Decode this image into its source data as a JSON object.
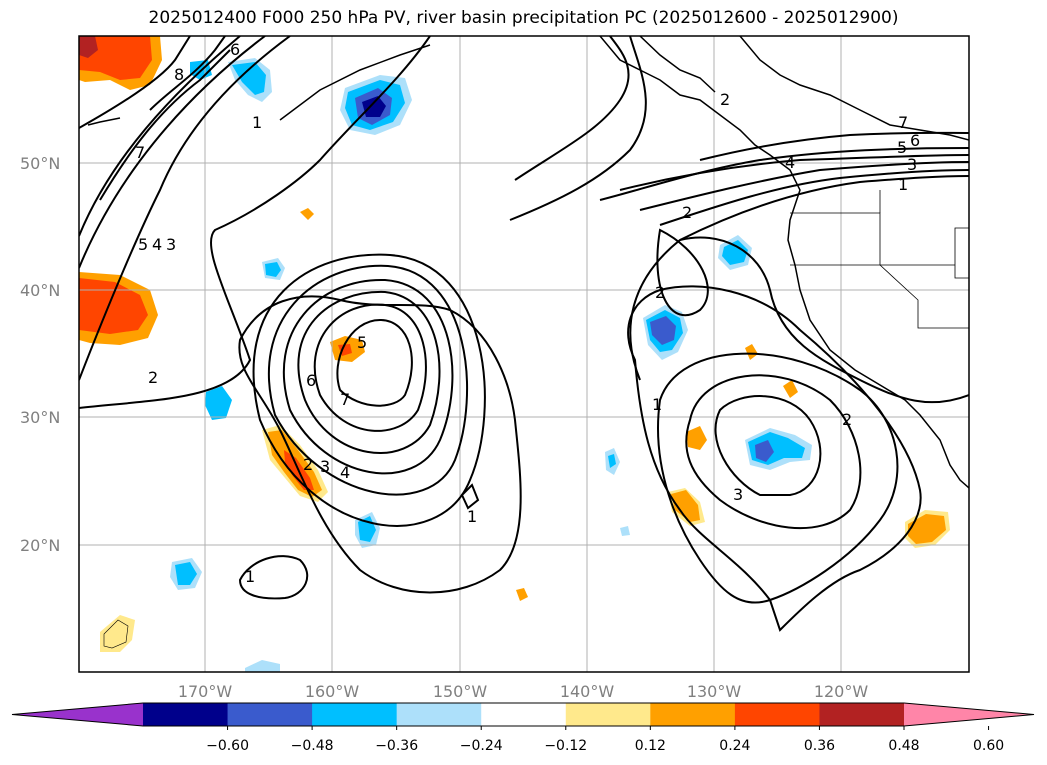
{
  "title": "2025012400 F000 250 hPa PV, river basin precipitation PC (2025012600 - 2025012900)",
  "map": {
    "lat_labels": [
      "50°N",
      "40°N",
      "30°N",
      "20°N"
    ],
    "lon_labels": [
      "170°W",
      "160°W",
      "150°W",
      "140°W",
      "130°W",
      "120°W"
    ],
    "contour_labels": [
      "8",
      "6",
      "7",
      "1",
      "5",
      "4",
      "3",
      "2",
      "5",
      "6",
      "7",
      "2",
      "3",
      "4",
      "1",
      "1",
      "2",
      "3",
      "2",
      "7",
      "6",
      "5",
      "3",
      "1",
      "2",
      "1",
      "4",
      "2"
    ]
  },
  "colorbar": {
    "ticks": [
      "−0.60",
      "−0.48",
      "−0.36",
      "−0.24",
      "−0.12",
      "0.12",
      "0.24",
      "0.36",
      "0.48",
      "0.60"
    ],
    "colors": [
      "#9932CC",
      "#00008B",
      "#3A5BCD",
      "#00BFFF",
      "#ADE0FA",
      "#FFFFFF",
      "#FFE98C",
      "#FFA000",
      "#FF4500",
      "#B22222",
      "#FF85A8"
    ]
  }
}
